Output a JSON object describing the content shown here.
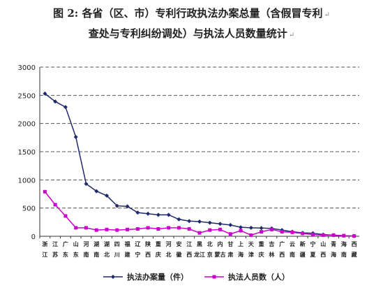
{
  "title_line1": "图 2: 各省（区、市）专利行政执法办案总量（含假冒专利",
  "title_line2": "查处与专利纠纷调处）与执法人员数量统计",
  "para_mark": "↵",
  "colors": {
    "cases": "#1f2a6b",
    "staff": "#cc00cc",
    "grid": "#555555"
  },
  "chart_data": {
    "type": "line",
    "title": "",
    "xlabel": "",
    "ylabel": "",
    "ylim": [
      0,
      3000
    ],
    "yticks": [
      0,
      500,
      1000,
      1500,
      2000,
      2500,
      3000
    ],
    "grid": "horizontal dashed",
    "legend": "bottom",
    "categories": [
      "浙江",
      "江苏",
      "广东",
      "山东",
      "河南",
      "湖南",
      "湖北",
      "四川",
      "福建",
      "辽宁",
      "陕西",
      "重庆",
      "河北",
      "安徽",
      "江西",
      "黑龙江",
      "北京",
      "内蒙古",
      "甘肃",
      "上海",
      "天津",
      "重庆",
      "吉林",
      "广西",
      "云南",
      "新疆",
      "宁夏",
      "山西",
      "青海",
      "海南",
      "西藏"
    ],
    "categories_row1": [
      "浙",
      "江",
      "广",
      "山",
      "河",
      "湖",
      "湖",
      "四",
      "福",
      "辽",
      "陕",
      "重",
      "河",
      "安",
      "江",
      "黑",
      "北",
      "内",
      "甘",
      "上",
      "天",
      "重",
      "吉",
      "广",
      "云",
      "新",
      "宁",
      "山",
      "青",
      "海",
      "西"
    ],
    "categories_row2": [
      "江",
      "苏",
      "东",
      "东",
      "南",
      "南",
      "北",
      "川",
      "建",
      "宁",
      "西",
      "庆",
      "北",
      "徽",
      "西",
      "龙江",
      "京",
      "蒙古",
      "肃",
      "海",
      "津",
      "庆",
      "林",
      "西",
      "南",
      "疆",
      "夏",
      "西",
      "海",
      "南",
      "藏"
    ],
    "series": [
      {
        "name": "执法办案量（件）",
        "color": "#1f2a6b",
        "marker": "diamond",
        "values": [
          2530,
          2390,
          2290,
          1760,
          930,
          800,
          720,
          540,
          530,
          420,
          400,
          380,
          380,
          300,
          270,
          260,
          240,
          220,
          200,
          160,
          150,
          145,
          140,
          110,
          80,
          60,
          55,
          30,
          20,
          10,
          5
        ]
      },
      {
        "name": "执法人员数（人）",
        "color": "#cc00cc",
        "marker": "square",
        "values": [
          790,
          560,
          360,
          150,
          150,
          110,
          120,
          110,
          120,
          130,
          150,
          130,
          150,
          150,
          130,
          60,
          110,
          120,
          40,
          100,
          20,
          80,
          120,
          80,
          70,
          50,
          30,
          20,
          20,
          10,
          5
        ]
      }
    ]
  }
}
